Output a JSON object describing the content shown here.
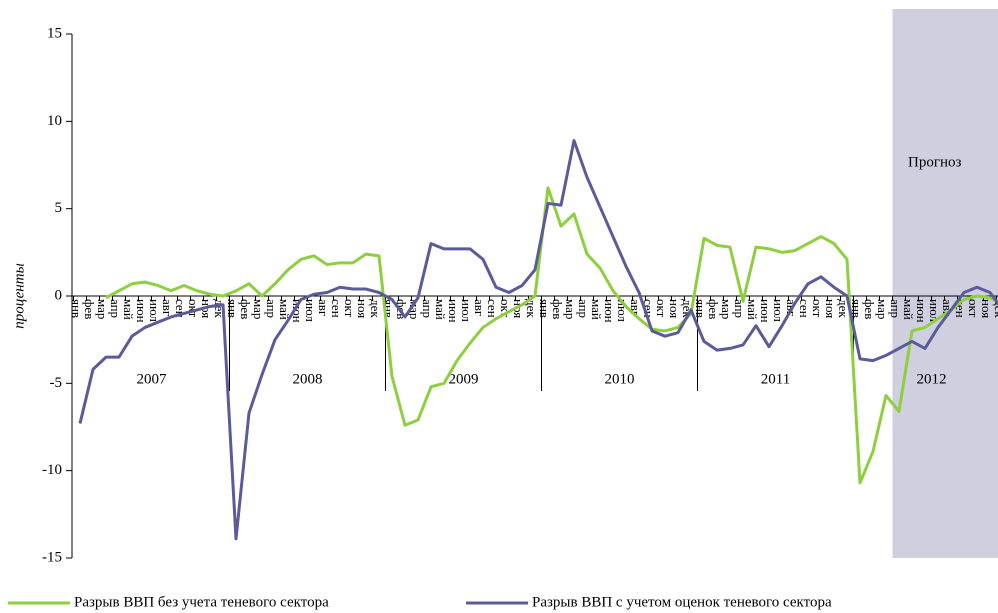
{
  "chart_data": {
    "type": "line",
    "y_label": "проценты",
    "categories": [
      "янв",
      "фев",
      "мар",
      "апр",
      "май",
      "июн",
      "июл",
      "авг",
      "сен",
      "окт",
      "ноя",
      "дек",
      "янв",
      "фев",
      "мар",
      "апр",
      "май",
      "июн",
      "июл",
      "авг",
      "сен",
      "окт",
      "ноя",
      "дек",
      "янв",
      "фев",
      "мар",
      "апр",
      "май",
      "июн",
      "июл",
      "авг",
      "сен",
      "окт",
      "ноя",
      "дек",
      "янв",
      "фев",
      "мар",
      "апр",
      "май",
      "июн",
      "июл",
      "авг",
      "сен",
      "окт",
      "ноя",
      "дек",
      "янв",
      "фев",
      "мар",
      "апр",
      "май",
      "июн",
      "июл",
      "авг",
      "сен",
      "окт",
      "ноя",
      "дек",
      "янв",
      "фев",
      "мар",
      "апр",
      "май",
      "июн",
      "июл",
      "авг",
      "сен",
      "окт",
      "ноя",
      "дек"
    ],
    "years": [
      "2007",
      "2008",
      "2009",
      "2010",
      "2011",
      "2012"
    ],
    "series": [
      {
        "name": "Разрыв ВВП без учета теневого сектора",
        "color": "#8dcf3f",
        "values": [
          null,
          null,
          -0.1,
          0.3,
          0.7,
          0.8,
          0.6,
          0.3,
          0.6,
          0.3,
          0.1,
          0.0,
          0.3,
          0.7,
          0.0,
          0.7,
          1.5,
          2.1,
          2.3,
          1.8,
          1.9,
          1.9,
          2.4,
          2.3,
          -4.6,
          -7.4,
          -7.1,
          -5.2,
          -5.0,
          -3.7,
          -2.7,
          -1.8,
          -1.3,
          -0.9,
          -0.5,
          0.0,
          6.2,
          4.0,
          4.7,
          2.4,
          1.6,
          0.3,
          -0.6,
          -1.3,
          -1.9,
          -2.0,
          -1.8,
          -1.0,
          3.3,
          2.9,
          2.8,
          -0.3,
          2.8,
          2.7,
          2.5,
          2.6,
          3.0,
          3.4,
          3.0,
          2.1,
          -10.7,
          -8.9,
          -5.7,
          -6.6,
          -2.0,
          -1.8,
          -1.3,
          -0.8,
          -0.2,
          0.0,
          -0.1,
          -0.5
        ]
      },
      {
        "name": "Разрыв ВВП с учетом оценок теневого сектора",
        "color": "#5b5b9a",
        "values": [
          -7.3,
          -4.2,
          -3.5,
          -3.5,
          -2.3,
          -1.8,
          -1.5,
          -1.2,
          -1.0,
          -0.8,
          -0.6,
          -0.5,
          -13.9,
          -6.7,
          -4.5,
          -2.5,
          -1.4,
          -0.2,
          0.1,
          0.2,
          0.5,
          0.4,
          0.4,
          0.2,
          -0.2,
          -1.2,
          -0.1,
          3.0,
          2.7,
          2.7,
          2.7,
          2.1,
          0.5,
          0.2,
          0.6,
          1.5,
          5.3,
          5.2,
          8.9,
          6.8,
          5.1,
          3.4,
          1.7,
          0.2,
          -2.0,
          -2.3,
          -2.1,
          -0.8,
          -2.6,
          -3.1,
          -3.0,
          -2.8,
          -1.7,
          -2.9,
          -1.7,
          -0.4,
          0.7,
          1.1,
          0.5,
          0.0,
          -3.6,
          -3.7,
          -3.4,
          -3.0,
          -2.6,
          -3.0,
          -1.8,
          -0.8,
          0.2,
          0.5,
          0.2,
          -0.8
        ]
      }
    ],
    "forecast": {
      "label": "Прогноз",
      "start": 63,
      "color": "#cfcfe0"
    },
    "ylim": [
      -15,
      15
    ],
    "yticks": [
      -15,
      -10,
      -5,
      0,
      5,
      10,
      15
    ]
  }
}
